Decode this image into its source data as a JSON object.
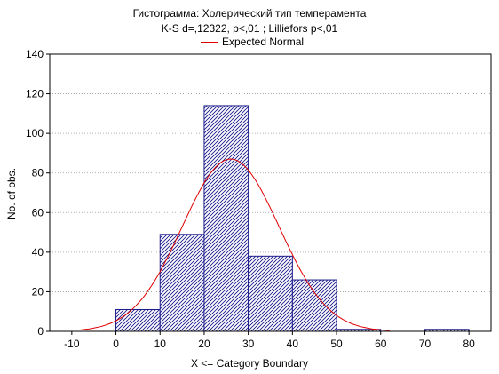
{
  "chart_data": {
    "type": "bar",
    "title": "Гистограмма: Холерический тип темперамента",
    "subtitle": "K-S d=,12322, p<,01 ; Lilliefors p<,01",
    "xlabel": "X <= Category Boundary",
    "ylabel": "No. of obs.",
    "xlim": [
      -15,
      85
    ],
    "ylim": [
      0,
      140
    ],
    "x_ticks": [
      -10,
      0,
      10,
      20,
      30,
      40,
      50,
      60,
      70,
      80
    ],
    "y_ticks": [
      0,
      20,
      40,
      60,
      80,
      100,
      120,
      140
    ],
    "grid": true,
    "legend_position": "top-center",
    "bins": [
      {
        "from": 0,
        "to": 10,
        "count": 11
      },
      {
        "from": 10,
        "to": 20,
        "count": 49
      },
      {
        "from": 20,
        "to": 30,
        "count": 114
      },
      {
        "from": 30,
        "to": 40,
        "count": 38
      },
      {
        "from": 40,
        "to": 50,
        "count": 26
      },
      {
        "from": 50,
        "to": 60,
        "count": 1
      },
      {
        "from": 70,
        "to": 80,
        "count": 1
      }
    ],
    "series": [
      {
        "name": "Expected Normal",
        "type": "line",
        "mean": 26,
        "sd": 11,
        "total": 240,
        "bin_width": 10
      }
    ],
    "colors": {
      "bar_edge": "#1a1a8c",
      "bar_hatch": "#1a1a8c",
      "curve": "#e00000",
      "grid": "#9a9a9a"
    }
  }
}
